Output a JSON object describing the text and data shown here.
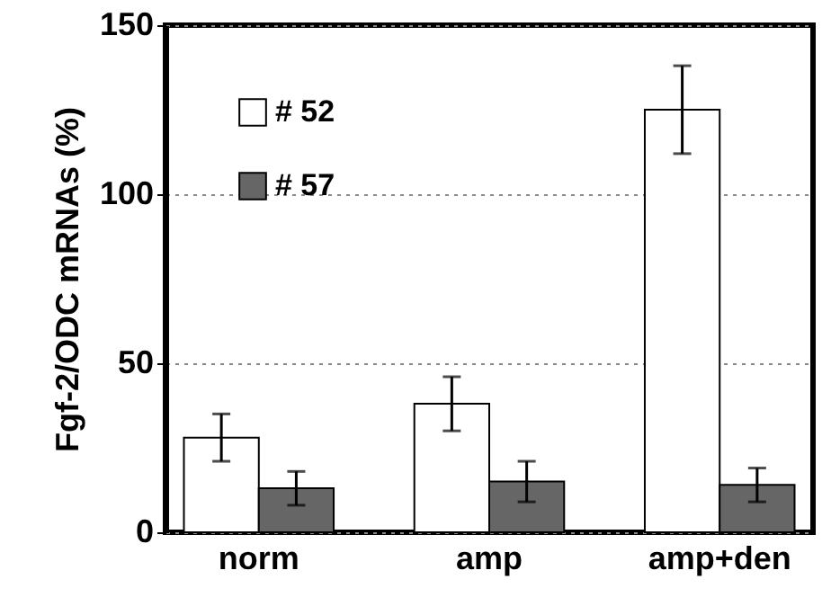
{
  "chart_data": {
    "type": "bar",
    "ylabel": "Fgf-2/ODC mRNAs (%)",
    "categories": [
      "norm",
      "amp",
      "amp+den"
    ],
    "series": [
      {
        "name": "# 52",
        "color": "#ffffff",
        "values": [
          28,
          38,
          125
        ],
        "errors": [
          7,
          8,
          13
        ]
      },
      {
        "name": "# 57",
        "color": "#666666",
        "values": [
          13,
          15,
          14
        ],
        "errors": [
          5,
          6,
          5
        ]
      }
    ],
    "ylim": [
      0,
      150
    ],
    "yticks": [
      0,
      50,
      100,
      150
    ],
    "grid": "y",
    "legend": "top left"
  }
}
